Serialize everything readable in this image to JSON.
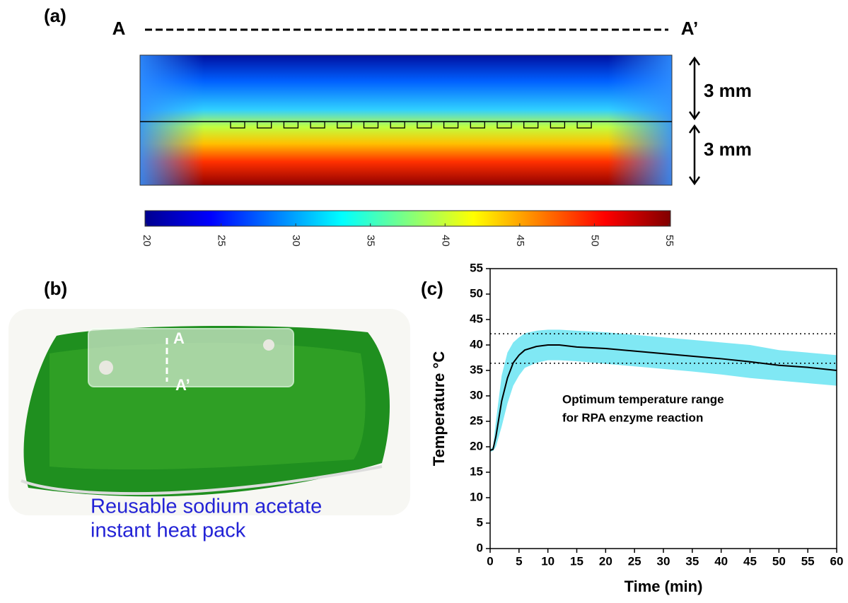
{
  "figure": {
    "panel_a": {
      "label": "(a)",
      "section_start": "A",
      "section_end": "A’",
      "dimensions": [
        "3 mm",
        "3 mm"
      ]
    },
    "panel_b": {
      "label": "(b)",
      "marker_start": "A",
      "marker_end": "A’",
      "caption": [
        "Reusable sodium acetate",
        "instant heat pack"
      ]
    },
    "panel_c": {
      "label": "(c)"
    }
  },
  "chart_data": [
    {
      "type": "colorbar",
      "xlim": [
        20,
        55
      ],
      "xticks": [
        20,
        25,
        30,
        35,
        40,
        45,
        50,
        55
      ]
    },
    {
      "type": "line",
      "x_label": "Time (min)",
      "y_label": "Temperature °C",
      "annotation": [
        "Optimum temperature range",
        "for RPA enzyme reaction"
      ],
      "xlim": [
        0,
        60
      ],
      "ylim": [
        0,
        55
      ],
      "xticks": [
        0,
        5,
        10,
        15,
        20,
        25,
        30,
        35,
        40,
        45,
        50,
        55,
        60
      ],
      "yticks": [
        0,
        5,
        10,
        15,
        20,
        25,
        30,
        35,
        40,
        45,
        50,
        55
      ],
      "reference_lines": [
        42.2,
        36.4
      ],
      "color": "#000000",
      "band_color": "#6ae4f2",
      "x": [
        0,
        0.5,
        1,
        2,
        3,
        4,
        5,
        6,
        8,
        10,
        12,
        15,
        20,
        25,
        30,
        35,
        40,
        45,
        50,
        55,
        60
      ],
      "values": [
        19.3,
        19.5,
        22,
        29,
        33.5,
        36.5,
        38,
        39,
        39.7,
        40,
        40,
        39.6,
        39.3,
        38.8,
        38.3,
        37.8,
        37.3,
        36.7,
        36,
        35.6,
        35
      ],
      "band_upper": [
        19.5,
        20,
        25,
        34,
        38.5,
        40.5,
        41.5,
        42.3,
        42.8,
        43,
        43,
        42.8,
        42.5,
        42,
        41.5,
        41,
        40.5,
        40,
        39,
        38.5,
        38
      ],
      "band_lower": [
        19,
        19.2,
        20,
        24,
        28.5,
        32,
        34,
        35.5,
        36.5,
        37,
        37,
        36.8,
        36.3,
        35.8,
        35.3,
        34.8,
        34.2,
        33.5,
        33,
        32.5,
        32
      ]
    }
  ]
}
